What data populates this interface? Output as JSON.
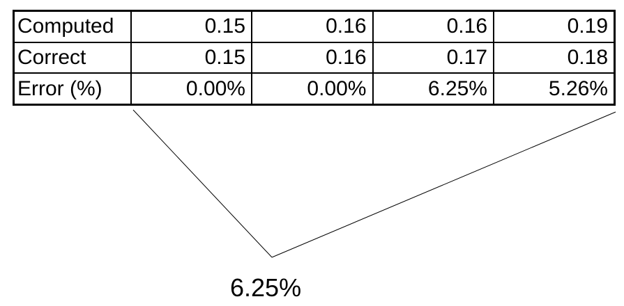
{
  "table": {
    "rows": [
      {
        "label": "Computed",
        "values": [
          "0.15",
          "0.16",
          "0.16",
          "0.19"
        ]
      },
      {
        "label": "Correct",
        "values": [
          "0.15",
          "0.16",
          "0.17",
          "0.18"
        ]
      },
      {
        "label": "Error (%)",
        "values": [
          "0.00%",
          "0.00%",
          "6.25%",
          "5.26%"
        ]
      }
    ]
  },
  "callout": {
    "text": "6.25%"
  }
}
